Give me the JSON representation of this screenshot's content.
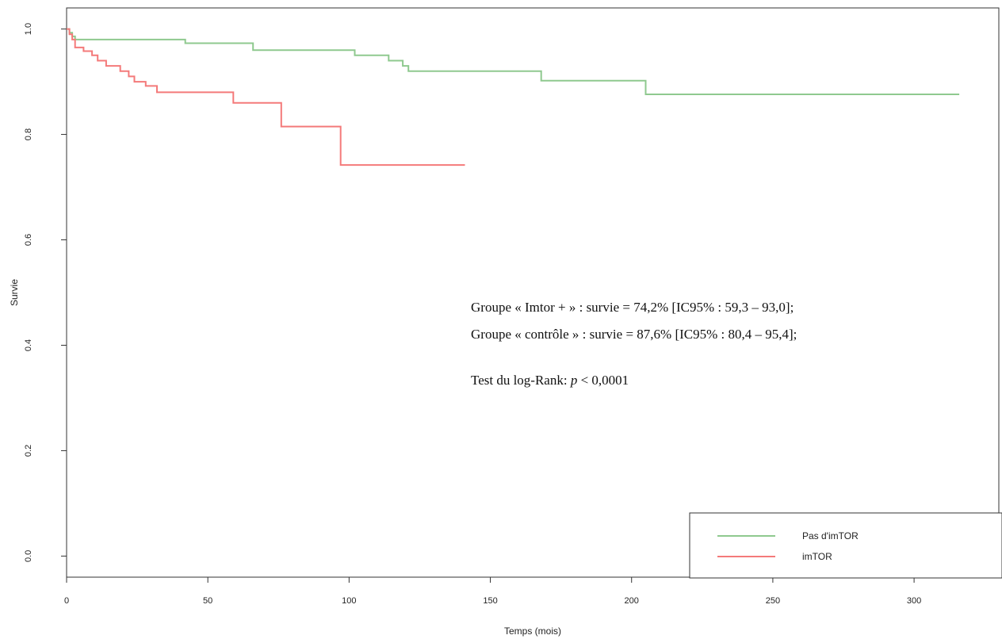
{
  "chart_data": {
    "type": "line",
    "xlabel": "Temps (mois)",
    "ylabel": "Survie",
    "xlim": [
      0,
      330
    ],
    "ylim": [
      -0.04,
      1.04
    ],
    "x_ticks": [
      0,
      50,
      100,
      150,
      200,
      250,
      300
    ],
    "y_ticks": [
      0.0,
      0.2,
      0.4,
      0.6,
      0.8,
      1.0
    ],
    "x_tick_labels": [
      "0",
      "50",
      "100",
      "150",
      "200",
      "250",
      "300"
    ],
    "y_tick_labels": [
      "0.0",
      "0.2",
      "0.4",
      "0.6",
      "0.8",
      "1.0"
    ],
    "grid": false,
    "step": true,
    "legend_position": "bottom-right",
    "series": [
      {
        "name": "Pas d'imTOR",
        "color": "#8fc98f",
        "x": [
          0,
          1,
          2,
          3,
          42,
          66,
          102,
          114,
          119,
          121,
          168,
          205,
          316
        ],
        "y": [
          1.0,
          0.993,
          0.986,
          0.98,
          0.973,
          0.96,
          0.95,
          0.94,
          0.93,
          0.92,
          0.902,
          0.876,
          0.876
        ]
      },
      {
        "name": "imTOR",
        "color": "#f47a7a",
        "x": [
          0,
          1,
          2,
          3,
          6,
          9,
          11,
          14,
          19,
          22,
          24,
          28,
          32,
          59,
          76,
          97,
          141
        ],
        "y": [
          1.0,
          0.99,
          0.98,
          0.965,
          0.958,
          0.95,
          0.94,
          0.93,
          0.92,
          0.91,
          0.9,
          0.892,
          0.88,
          0.86,
          0.815,
          0.742,
          0.742
        ]
      }
    ],
    "annotations": {
      "line1": "Groupe « Imtor + » : survie = 74,2% [IC95% : 59,3 – 93,0];",
      "line2": "Groupe « contrôle » : survie = 87,6% [IC95% : 80,4 – 95,4];",
      "line3_prefix": "Test du log-Rank: ",
      "line3_p": "p",
      "line3_suffix": " < 0,0001"
    }
  }
}
